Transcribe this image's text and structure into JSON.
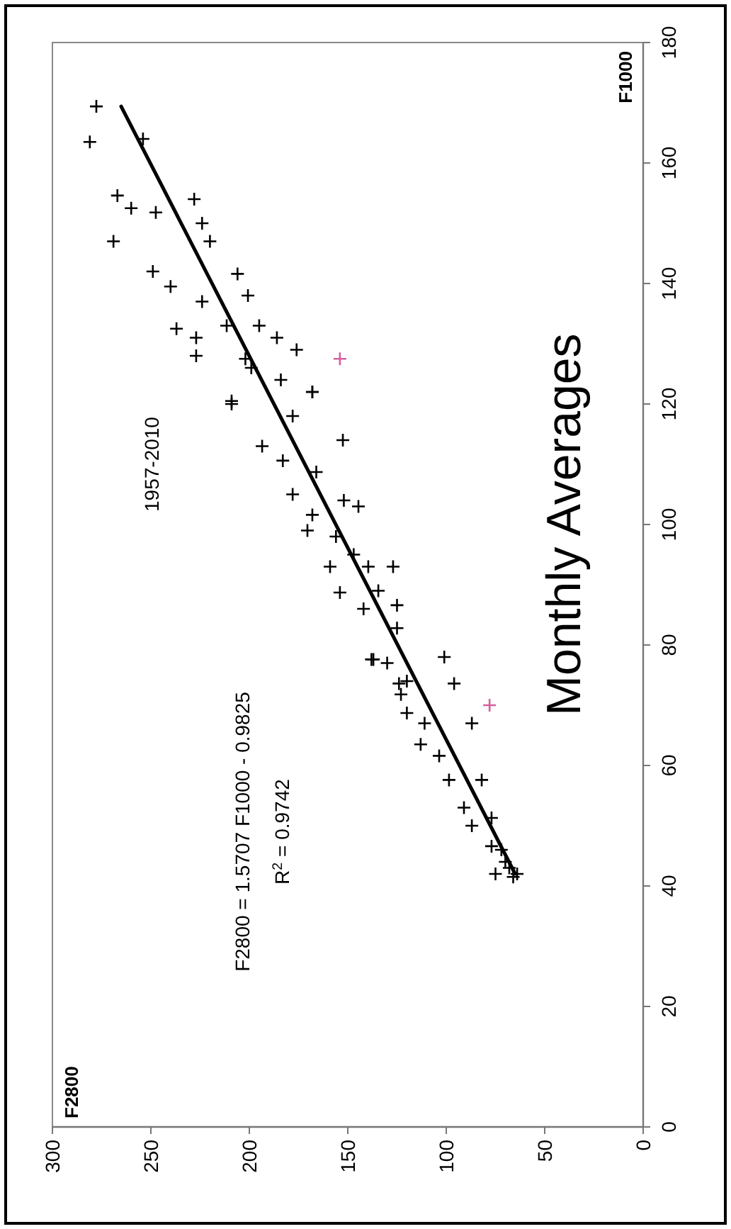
{
  "chart_data": {
    "type": "scatter",
    "title": "Monthly Averages",
    "ylabel": "F1000",
    "annotations": [
      "1957-2010",
      "F2800 = 1.5707 F1000 - 0.9825",
      "R$^{2}$ = 0.9742",
      "F2800"
    ],
    "xlim": [
      300,
      0
    ],
    "xticks": [
      0,
      50,
      100,
      150,
      200,
      250,
      300
    ],
    "ylim": [
      0,
      180
    ],
    "yticks": [
      0,
      20,
      40,
      60,
      80,
      100,
      120,
      140,
      160,
      180
    ],
    "marker": "cross",
    "series": [
      {
        "type": "scatter",
        "color": "#000000",
        "values": [
          169.4,
          163.5,
          164,
          147,
          154.6,
          152.5,
          154,
          150,
          147,
          151.8,
          142,
          139.5,
          132.5,
          131,
          128,
          141.6,
          138,
          133,
          131,
          129,
          122,
          120,
          137,
          133,
          127.5,
          124,
          120.5,
          113,
          110.6,
          122,
          114,
          105,
          99,
          103,
          104,
          88.7,
          93,
          93,
          86,
          93,
          86.6,
          77.6,
          74,
          77,
          71.8,
          126,
          118,
          108.7,
          98,
          95,
          89,
          82.8,
          101.6,
          77.6,
          78,
          73.6,
          68.7,
          63.5,
          73.6,
          67,
          53,
          57.6,
          46.6,
          42,
          61.6,
          50,
          57.6,
          51.3,
          67,
          43,
          44,
          41.5,
          46,
          42
        ],
        "x": [
          277.7,
          281,
          254,
          269,
          267,
          260,
          228,
          224,
          220,
          247.5,
          249,
          240,
          237,
          227,
          227,
          206,
          200.7,
          195,
          186,
          176,
          168,
          209,
          224,
          211.5,
          202,
          184,
          209,
          193.5,
          183,
          168,
          152.5,
          178,
          170.5,
          144.6,
          152,
          154,
          127,
          159,
          142,
          139.6,
          125,
          137,
          120,
          130,
          123,
          199,
          178,
          166,
          156,
          147,
          134.5,
          125,
          168,
          138,
          101,
          124,
          120,
          113,
          96,
          87,
          91,
          82,
          77,
          75,
          103.6,
          87,
          98.6,
          77,
          111,
          68,
          70,
          66,
          72,
          64
        ]
      },
      {
        "type": "scatter",
        "color": "#d4609e",
        "values": [
          127.5,
          70
        ],
        "x": [
          154,
          78
        ]
      },
      {
        "type": "line",
        "marker": "none",
        "color": "#000000",
        "values": [
          42,
          169.4
        ],
        "x": [
          65,
          265.1
        ]
      }
    ]
  }
}
